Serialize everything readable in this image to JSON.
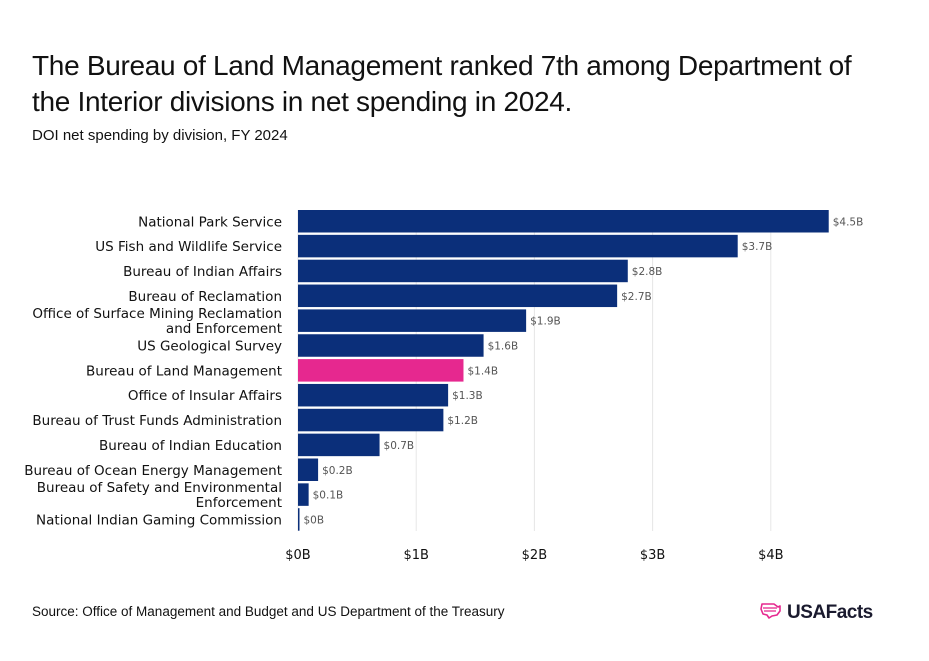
{
  "header": {
    "title": "The Bureau of Land Management ranked 7th among Department of the Interior divisions in net spending in 2024.",
    "subtitle": "DOI net spending by division, FY 2024"
  },
  "footer": {
    "source": "Source: Office of Management and Budget and US Department of the Treasury",
    "brand": "USAFacts",
    "brand_icon": "us-map-flag-icon"
  },
  "colors": {
    "bar": "#0b2f7a",
    "highlight": "#e6288f",
    "grid": "#e6e6e6",
    "value_label": "#555555"
  },
  "chart_data": {
    "type": "bar",
    "orientation": "horizontal",
    "categories": [
      "National Park Service",
      "US Fish and Wildlife Service",
      "Bureau of Indian Affairs",
      "Bureau of Reclamation",
      "Office of Surface Mining Reclamation and Enforcement",
      "US Geological Survey",
      "Bureau of Land Management",
      "Office of Insular Affairs",
      "Bureau of Trust Funds Administration",
      "Bureau of Indian Education",
      "Bureau of Ocean Energy Management",
      "Bureau of Safety and Environmental Enforcement",
      "National Indian Gaming Commission"
    ],
    "category_lines": [
      [
        "National Park Service"
      ],
      [
        "US Fish and Wildlife Service"
      ],
      [
        "Bureau of Indian Affairs"
      ],
      [
        "Bureau of Reclamation"
      ],
      [
        "Office of Surface Mining Reclamation",
        "and Enforcement"
      ],
      [
        "US Geological Survey"
      ],
      [
        "Bureau of Land Management"
      ],
      [
        "Office of Insular Affairs"
      ],
      [
        "Bureau of Trust Funds Administration"
      ],
      [
        "Bureau of Indian Education"
      ],
      [
        "Bureau of Ocean Energy Management"
      ],
      [
        "Bureau of Safety and Environmental",
        "Enforcement"
      ],
      [
        "National Indian Gaming Commission"
      ]
    ],
    "values": [
      4.49,
      3.72,
      2.79,
      2.7,
      1.93,
      1.57,
      1.4,
      1.27,
      1.23,
      0.69,
      0.17,
      0.09,
      0.01
    ],
    "value_labels": [
      "$4.5B",
      "$3.7B",
      "$2.8B",
      "$2.7B",
      "$1.9B",
      "$1.6B",
      "$1.4B",
      "$1.3B",
      "$1.2B",
      "$0.7B",
      "$0.2B",
      "$0.1B",
      "$0B"
    ],
    "highlight": "Bureau of Land Management",
    "x_ticks": [
      0,
      1,
      2,
      3,
      4
    ],
    "x_tick_labels": [
      "$0B",
      "$1B",
      "$2B",
      "$3B",
      "$4B"
    ],
    "xlim": [
      0,
      4.5
    ],
    "xlabel": "",
    "ylabel": "",
    "grid": true,
    "legend": false
  }
}
